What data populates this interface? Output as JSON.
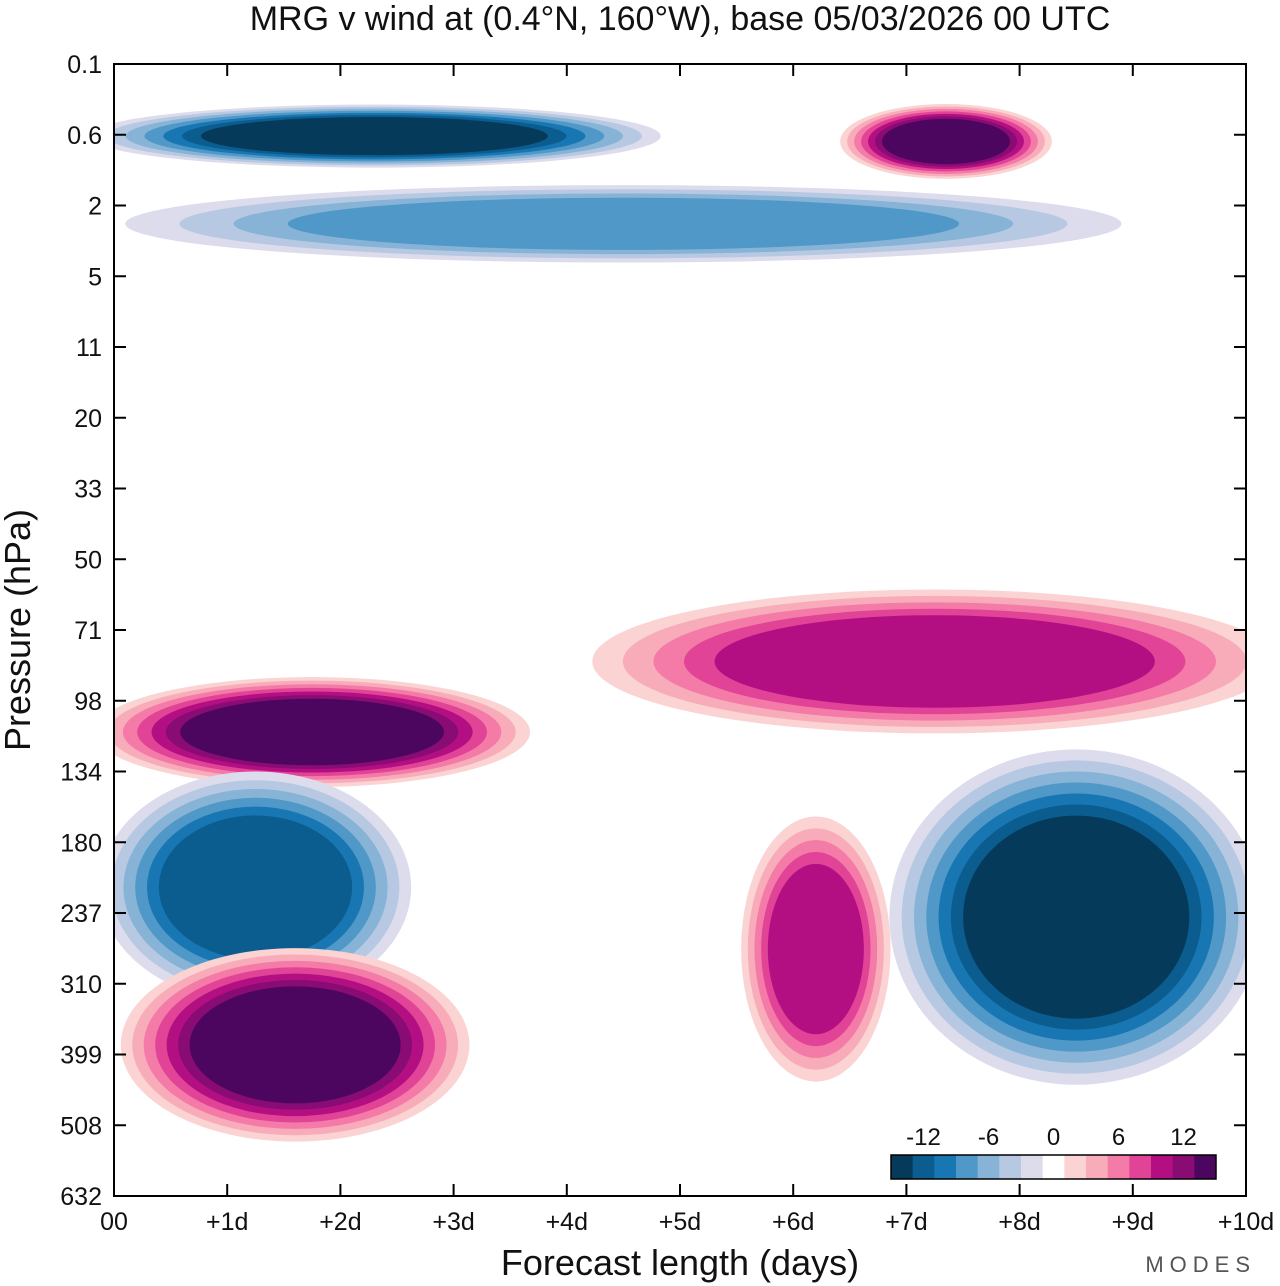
{
  "chart_data": {
    "type": "heatmap",
    "title": "MRG v wind at (0.4°N, 160°W),  base 05/03/2026  00 UTC",
    "xlabel": "Forecast length (days)",
    "ylabel": "Pressure (hPa)",
    "x_ticks": [
      "00",
      "+1d",
      "+2d",
      "+3d",
      "+4d",
      "+5d",
      "+6d",
      "+7d",
      "+8d",
      "+9d",
      "+10d"
    ],
    "y_ticks": [
      "0.1",
      "0.6",
      "2",
      "5",
      "11",
      "20",
      "33",
      "50",
      "71",
      "98",
      "134",
      "180",
      "237",
      "310",
      "399",
      "508",
      "632"
    ],
    "xlim": [
      0,
      10
    ],
    "ylim_order": "log pressure, top 0.1 hPa to bottom 632 hPa",
    "colorbar": {
      "labels": [
        "-12",
        "-6",
        "0",
        "6",
        "12"
      ],
      "colors": [
        "#053a5a",
        "#0b5d8f",
        "#1877b3",
        "#4f98c7",
        "#87b3d6",
        "#b7c9e2",
        "#dcdcec",
        "#ffffff",
        "#fbd3d3",
        "#f8acba",
        "#f47aa8",
        "#e14396",
        "#b40f82",
        "#880c74",
        "#4d0660"
      ]
    },
    "features": [
      {
        "name": "strong negative near 0.6 hPa",
        "sign": "negative",
        "x_days": [
          0,
          4.6
        ],
        "pressure_hPa": [
          0.3,
          1.0
        ],
        "peak": -15
      },
      {
        "name": "strong positive near 0.6 hPa",
        "sign": "positive",
        "x_days": [
          6.5,
          8.2
        ],
        "pressure_hPa": [
          0.3,
          1.2
        ],
        "peak": 14
      },
      {
        "name": "negative band near 2 hPa",
        "sign": "negative",
        "x_days": [
          0.5,
          8.5
        ],
        "pressure_hPa": [
          1.5,
          4
        ],
        "peak": -8
      },
      {
        "name": "strong positive near 98-134 hPa",
        "sign": "positive",
        "x_days": [
          0,
          3.5
        ],
        "pressure_hPa": [
          90,
          140
        ],
        "peak": 15
      },
      {
        "name": "positive band 71-98 hPa",
        "sign": "positive",
        "x_days": [
          4.5,
          10
        ],
        "pressure_hPa": [
          60,
          110
        ],
        "peak": 10
      },
      {
        "name": "strong negative 134-399 hPa",
        "sign": "negative",
        "x_days": [
          7,
          10
        ],
        "pressure_hPa": [
          130,
          420
        ],
        "peak": -15
      },
      {
        "name": "negative 134-310 hPa",
        "sign": "negative",
        "x_days": [
          0,
          2.5
        ],
        "pressure_hPa": [
          140,
          320
        ],
        "peak": -12
      },
      {
        "name": "strong positive 310-508 hPa",
        "sign": "positive",
        "x_days": [
          0.2,
          3
        ],
        "pressure_hPa": [
          280,
          520
        ],
        "peak": 15
      },
      {
        "name": "positive 180-399 hPa",
        "sign": "positive",
        "x_days": [
          5.6,
          6.8
        ],
        "pressure_hPa": [
          170,
          420
        ],
        "peak": 10
      }
    ]
  },
  "watermark": "MODES"
}
